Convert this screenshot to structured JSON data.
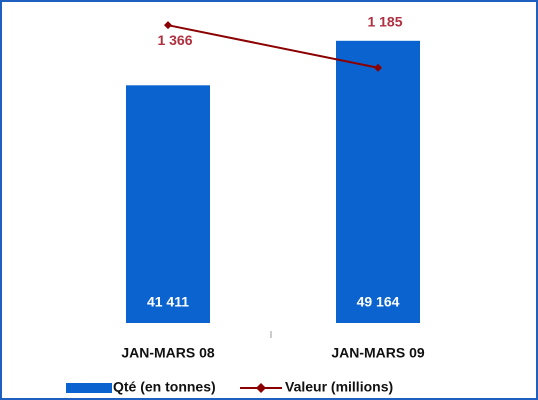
{
  "chart_data": {
    "type": "bar-line",
    "categories": [
      "JAN-MARS 08",
      "JAN-MARS 09"
    ],
    "series": [
      {
        "name": "Qté (en tonnes)",
        "type": "bar",
        "color": "#0a63cf",
        "values": [
          41411,
          49164
        ],
        "value_labels": [
          "41 411",
          "49 164"
        ]
      },
      {
        "name": "Valeur (millions)",
        "type": "line",
        "axis": "y2",
        "color": "#8b0000",
        "values": [
          1366,
          1185
        ],
        "value_labels": [
          "1 366",
          "1 185"
        ]
      }
    ],
    "ylim": [
      0,
      50000
    ],
    "y2lim": [
      100,
      1320
    ]
  }
}
